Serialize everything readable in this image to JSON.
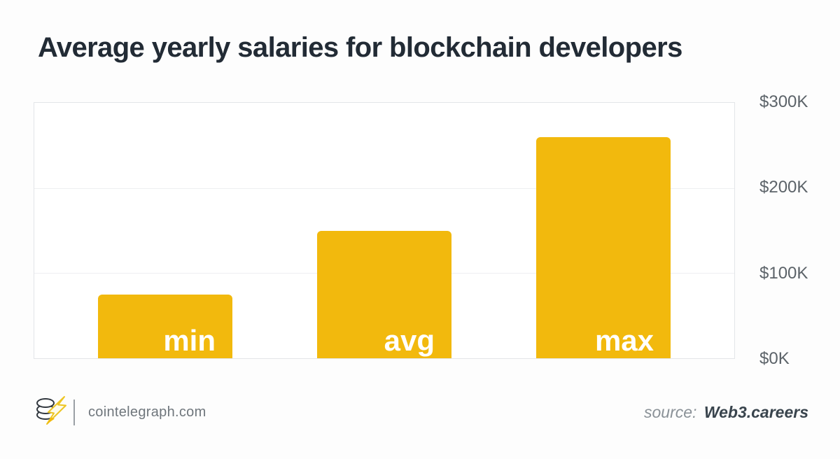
{
  "title": "Average yearly salaries for blockchain developers",
  "chart_data": {
    "type": "bar",
    "title": "Average yearly salaries for blockchain developers",
    "categories": [
      "min",
      "avg",
      "max"
    ],
    "values": [
      75,
      150,
      260
    ],
    "value_unit": "thousand USD per year",
    "xlabel": "",
    "ylabel": "",
    "ylim": [
      0,
      300
    ],
    "yticks": [
      {
        "label": "$0K",
        "value": 0
      },
      {
        "label": "$100K",
        "value": 100
      },
      {
        "label": "$200K",
        "value": 200
      },
      {
        "label": "$300K",
        "value": 300
      }
    ],
    "grid": true,
    "legend": "none",
    "bar_color": "#F2B90D",
    "bar_label_color": "#FFFFFF",
    "bar_labels_inside": true
  },
  "footer": {
    "logo_icon": "cointelegraph-coin-stack-lightning-logo",
    "brand": "cointelegraph.com",
    "source_prefix": "source:",
    "source_name": "Web3.careers"
  },
  "colors": {
    "accent_yellow": "#F2B90D",
    "title_text": "#222B35",
    "axis_text": "#5C6369",
    "plot_border": "#E3E5E8",
    "gridline": "#EEEFF1",
    "background": "#FDFDFD"
  }
}
